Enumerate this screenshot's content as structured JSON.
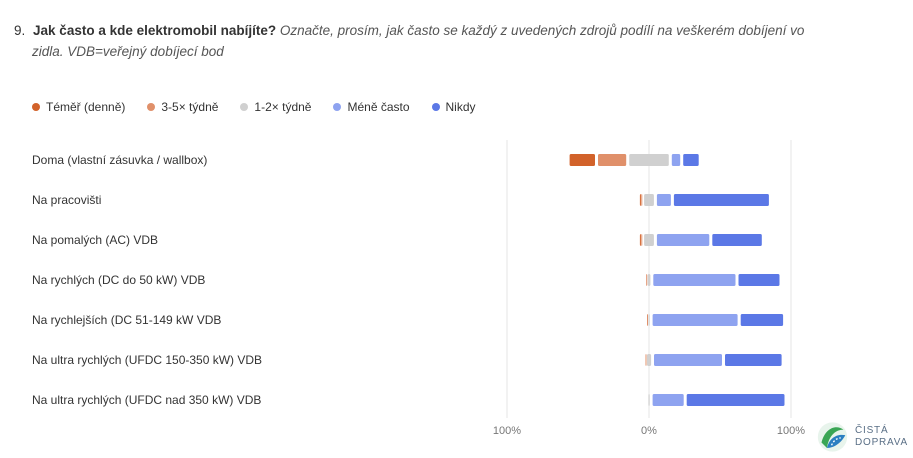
{
  "question": {
    "number": "9.",
    "title": "Jak často a kde elektromobil nabíjíte?",
    "instruction_line1": "Označte, prosím, jak často se každý z uvedených zdrojů podílí na veškerém dobíjení vo",
    "instruction_line2": "zidla. VDB=veřejný dobíjecí bod"
  },
  "logo": {
    "line1": "ČISTÁ",
    "line2": "DOPRAVA"
  },
  "colors": {
    "daily": "#d2622a",
    "three_five": "#e0906a",
    "one_two": "#d0d0d0",
    "less": "#8ea3f0",
    "never": "#5b78e6",
    "gridline": "#e5e5e5"
  },
  "chart_data": {
    "type": "bar",
    "subtype": "diverging stacked",
    "categories": [
      "Doma (vlastní zásuvka / wallbox)",
      "Na pracovišti",
      "Na pomalých (AC) VDB",
      "Na rychlých (DC do 50 kW) VDB",
      "Na rychlejších (DC 51-149 kW VDB",
      "Na ultra rychlých (UFDC 150-350 kW) VDB",
      "Na ultra rychlých (UFDC nad 350 kW) VDB"
    ],
    "series": [
      {
        "name": "Téměř (denně)",
        "color_key": "daily",
        "values": [
          20,
          1,
          1,
          0,
          0,
          0,
          0
        ]
      },
      {
        "name": "3-5× týdně",
        "color_key": "three_five",
        "values": [
          22,
          2,
          2,
          1,
          1,
          1,
          0
        ]
      },
      {
        "name": "1-2× týdně",
        "color_key": "one_two",
        "values": [
          30,
          9,
          9,
          4,
          3,
          5,
          3
        ]
      },
      {
        "name": "Méně často",
        "color_key": "less",
        "values": [
          8,
          12,
          39,
          60,
          62,
          50,
          24
        ]
      },
      {
        "name": "Nikdy",
        "color_key": "never",
        "values": [
          13,
          69,
          37,
          31,
          32,
          42,
          71
        ]
      }
    ],
    "neutral_series_index": 2,
    "xlim": [
      -100,
      100
    ],
    "x_ticks": [
      "100%",
      "0%",
      "100%"
    ],
    "legend_position": "top-left",
    "grid": true
  }
}
